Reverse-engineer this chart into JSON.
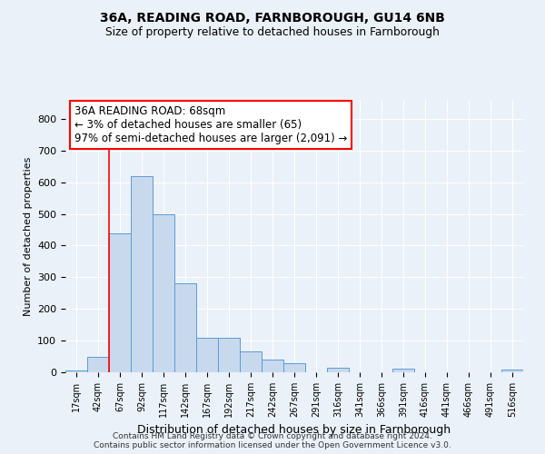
{
  "title1": "36A, READING ROAD, FARNBOROUGH, GU14 6NB",
  "title2": "Size of property relative to detached houses in Farnborough",
  "xlabel": "Distribution of detached houses by size in Farnborough",
  "ylabel": "Number of detached properties",
  "footer1": "Contains HM Land Registry data © Crown copyright and database right 2024.",
  "footer2": "Contains public sector information licensed under the Open Government Licence v3.0.",
  "bin_labels": [
    "17sqm",
    "42sqm",
    "67sqm",
    "92sqm",
    "117sqm",
    "142sqm",
    "167sqm",
    "192sqm",
    "217sqm",
    "242sqm",
    "267sqm",
    "291sqm",
    "316sqm",
    "341sqm",
    "366sqm",
    "391sqm",
    "416sqm",
    "441sqm",
    "466sqm",
    "491sqm",
    "516sqm"
  ],
  "bar_heights": [
    5,
    50,
    440,
    620,
    500,
    280,
    110,
    110,
    65,
    40,
    30,
    0,
    15,
    0,
    0,
    12,
    0,
    0,
    0,
    0,
    8
  ],
  "bar_color": "#c8d9ee",
  "bar_edge_color": "#5b9bd5",
  "ylim": [
    0,
    860
  ],
  "yticks": [
    0,
    100,
    200,
    300,
    400,
    500,
    600,
    700,
    800
  ],
  "vline_x": 1.5,
  "annotation_text": "36A READING ROAD: 68sqm\n← 3% of detached houses are smaller (65)\n97% of semi-detached houses are larger (2,091) →",
  "annotation_box_color": "white",
  "annotation_box_edge_color": "red",
  "vline_color": "red",
  "background_color": "#eaf1f9",
  "grid_color": "white"
}
